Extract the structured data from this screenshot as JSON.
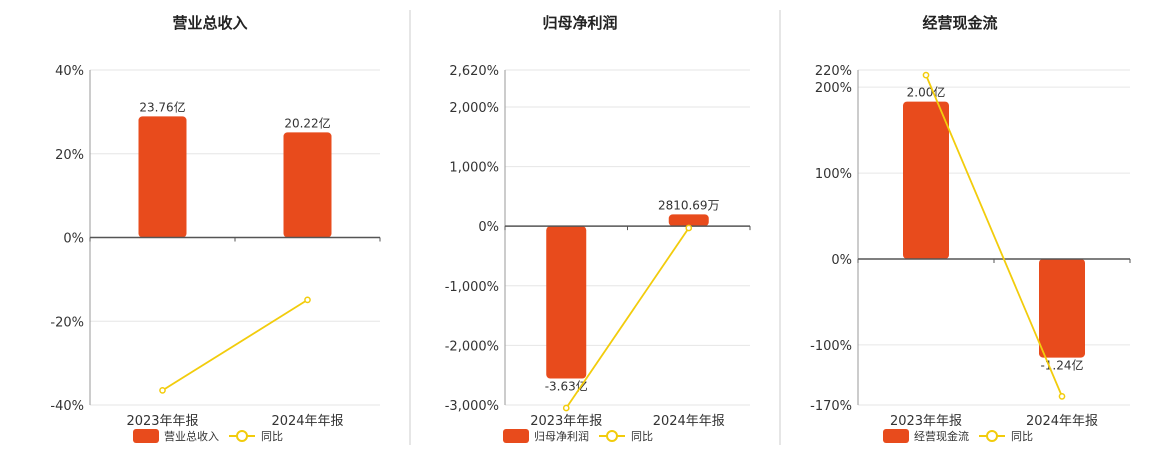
{
  "colors": {
    "bar": "#E84B1C",
    "line": "#F2CC0C",
    "axis": "#555555",
    "grid": "#E6E6E6",
    "divider": "#CCCCCC"
  },
  "chart_data": [
    {
      "type": "bar",
      "title": "营业总收入",
      "categories": [
        "2023年年报",
        "2024年年报"
      ],
      "series": [
        {
          "name": "营业总收入",
          "type": "bar",
          "values": [
            23.76,
            20.22
          ],
          "labels": [
            "23.76亿",
            "20.22亿"
          ]
        },
        {
          "name": "同比",
          "type": "line",
          "values": [
            -36.5,
            -14.9
          ]
        }
      ],
      "ylim": [
        -40,
        40
      ],
      "yticks": [
        "40%",
        "20%",
        "0%",
        "-20%",
        "-40%"
      ],
      "ytick_values": [
        40,
        20,
        0,
        -20,
        -40
      ],
      "bar_value_range": [
        -40,
        34
      ],
      "grid": true,
      "legend": "bottom-center"
    },
    {
      "type": "bar",
      "title": "归母净利润",
      "categories": [
        "2023年年报",
        "2024年年报"
      ],
      "series": [
        {
          "name": "归母净利润",
          "type": "bar",
          "values": [
            -3.63,
            0.281069
          ],
          "labels": [
            "-3.63亿",
            "2810.69万"
          ]
        },
        {
          "name": "同比",
          "type": "line",
          "values": [
            -3050,
            -30
          ]
        }
      ],
      "ylim": [
        -3000,
        2620
      ],
      "yticks": [
        "2,620%",
        "2,000%",
        "1,000%",
        "0%",
        "-1,000%",
        "-2,000%",
        "-3,000%"
      ],
      "ytick_values": [
        2620,
        2000,
        1000,
        0,
        -1000,
        -2000,
        -3000
      ],
      "bar_value_range": [
        -4.26,
        3.72
      ],
      "grid": true,
      "legend": "bottom-center"
    },
    {
      "type": "bar",
      "title": "经营现金流",
      "categories": [
        "2023年年报",
        "2024年年报"
      ],
      "series": [
        {
          "name": "经营现金流",
          "type": "bar",
          "values": [
            2.0,
            -1.24
          ],
          "labels": [
            "2.00亿",
            "-1.24亿"
          ]
        },
        {
          "name": "同比",
          "type": "line",
          "values": [
            214,
            -160
          ]
        }
      ],
      "ylim": [
        -170,
        220
      ],
      "yticks": [
        "220%",
        "200%",
        "100%",
        "0%",
        "-100%",
        "-170%"
      ],
      "ytick_values": [
        220,
        200,
        100,
        0,
        -100,
        -170
      ],
      "bar_value_range": [
        -1.84,
        2.4
      ],
      "grid": true,
      "legend": "bottom-center"
    }
  ]
}
